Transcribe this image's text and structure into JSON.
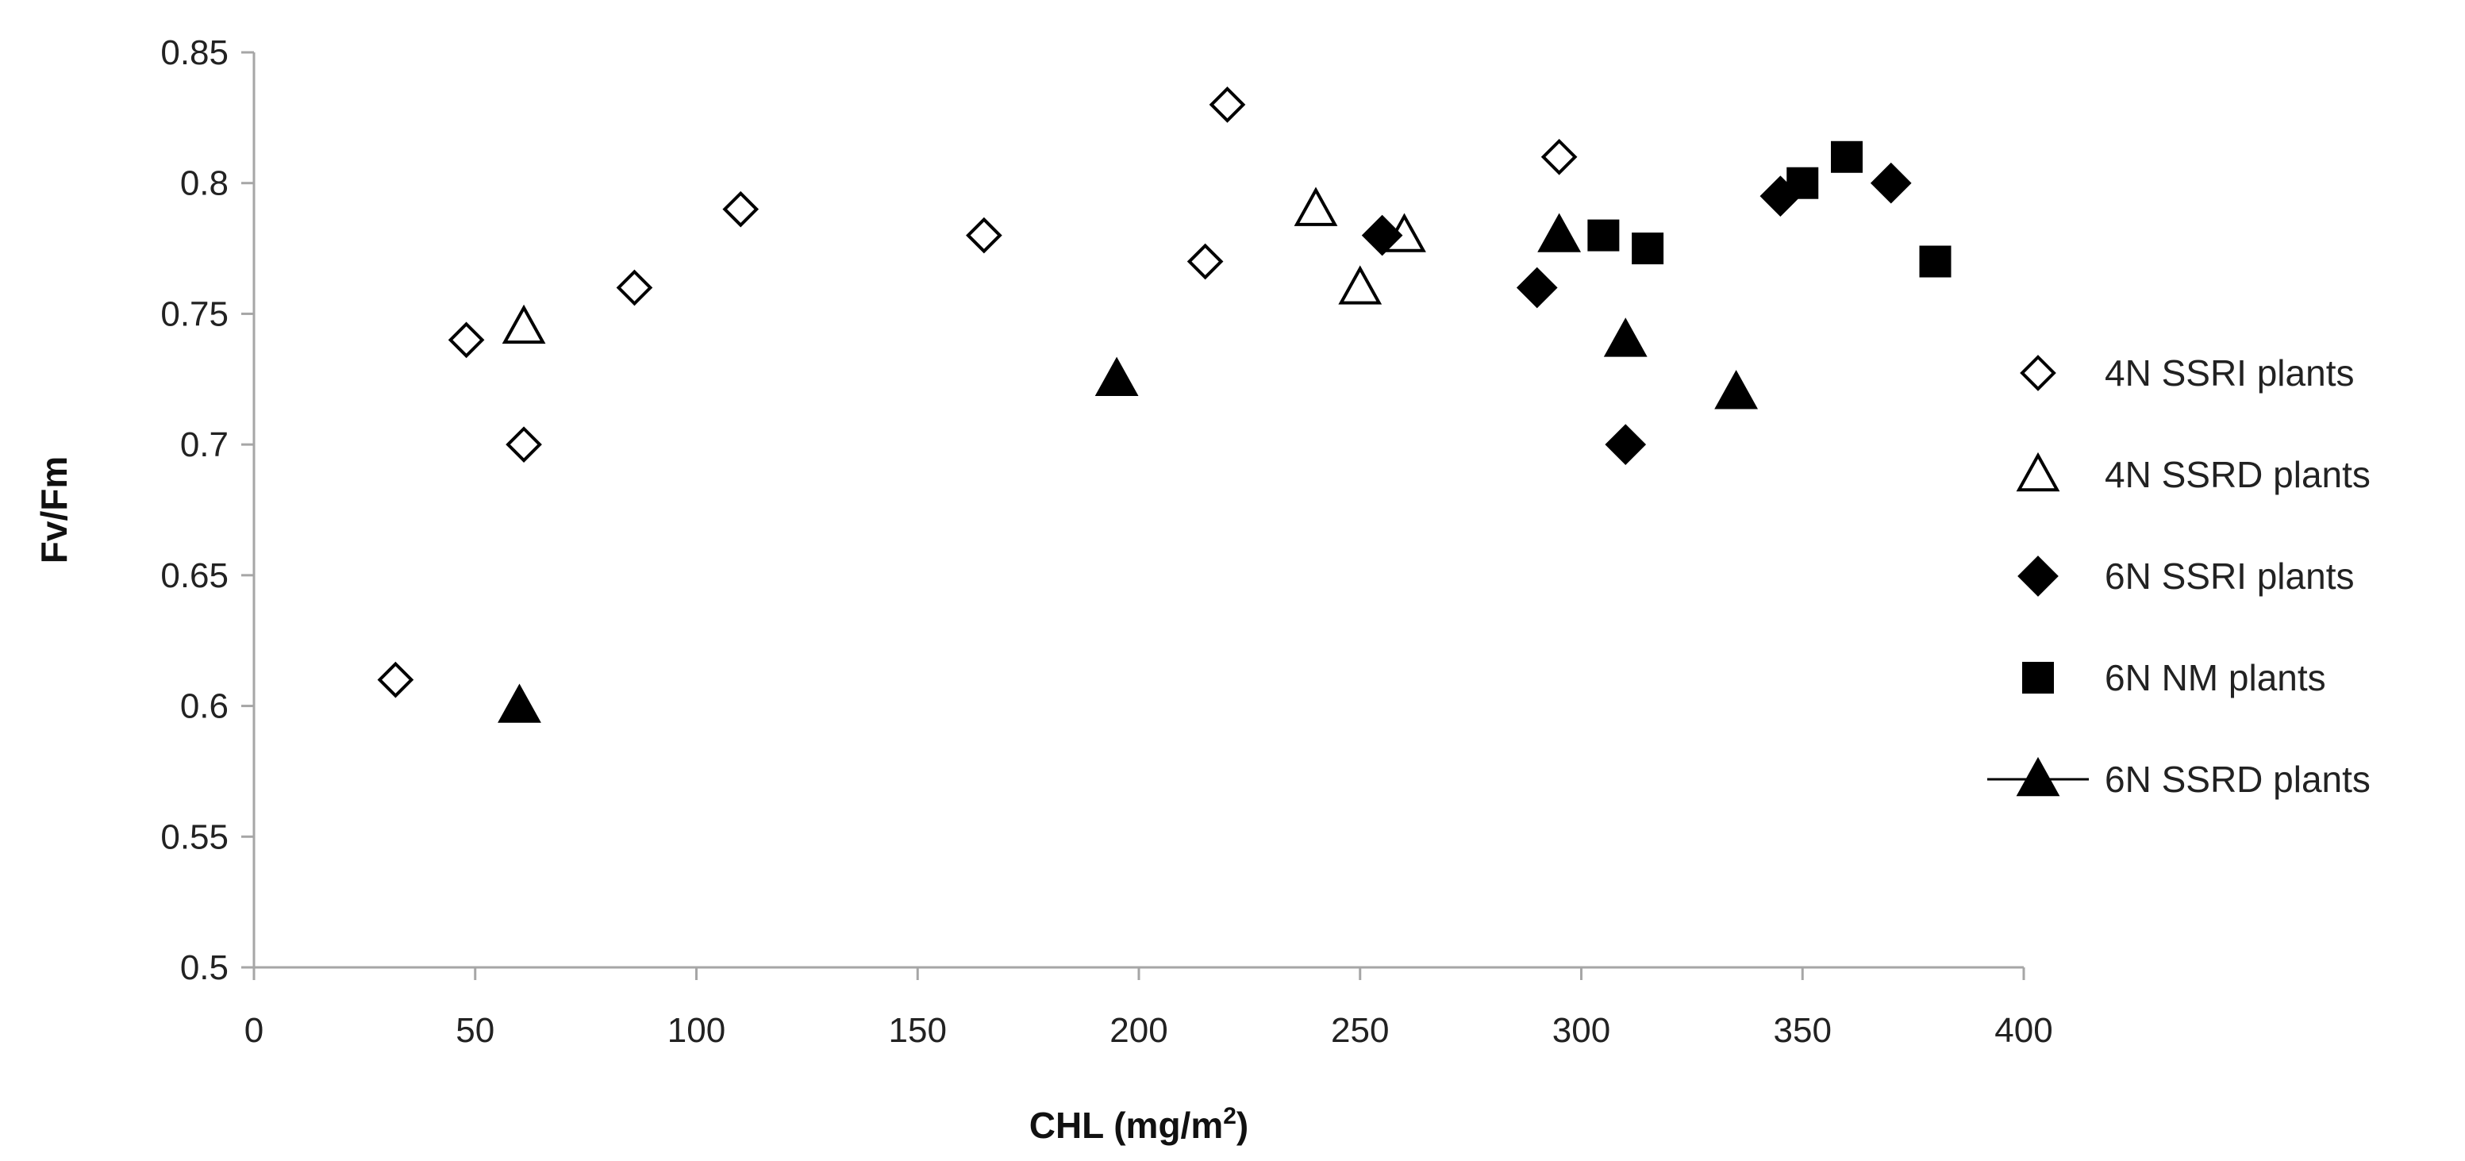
{
  "chart_data": {
    "type": "scatter",
    "title": "",
    "xlabel": "CHL (mg/m",
    "xlabel_superscript": "2",
    "xlabel_suffix": ")",
    "ylabel": "Fv/Fm",
    "xlim": [
      0,
      400
    ],
    "ylim": [
      0.5,
      0.85
    ],
    "x_ticks": [
      0,
      50,
      100,
      150,
      200,
      250,
      300,
      350,
      400
    ],
    "x_tick_labels": [
      "0",
      "50",
      "100",
      "150",
      "200",
      "250",
      "300",
      "350",
      "400"
    ],
    "y_ticks": [
      0.5,
      0.55,
      0.6,
      0.65,
      0.7,
      0.75,
      0.8,
      0.85
    ],
    "y_tick_labels": [
      "0.5",
      "0.55",
      "0.6",
      "0.65",
      "0.7",
      "0.75",
      "0.8",
      "0.85"
    ],
    "grid": false,
    "legend_position": "right",
    "series": [
      {
        "name": "4N SSRI plants",
        "marker": "diamond-open",
        "color": "#000000",
        "points": [
          [
            32,
            0.61
          ],
          [
            48,
            0.74
          ],
          [
            61,
            0.7
          ],
          [
            86,
            0.76
          ],
          [
            110,
            0.79
          ],
          [
            165,
            0.78
          ],
          [
            215,
            0.77
          ],
          [
            220,
            0.83
          ],
          [
            295,
            0.81
          ]
        ]
      },
      {
        "name": "4N SSRD plants",
        "marker": "triangle-open",
        "color": "#000000",
        "points": [
          [
            61,
            0.745
          ],
          [
            240,
            0.79
          ],
          [
            250,
            0.76
          ],
          [
            260,
            0.78
          ]
        ]
      },
      {
        "name": "6N SSRI plants",
        "marker": "diamond-filled",
        "color": "#000000",
        "points": [
          [
            255,
            0.78
          ],
          [
            290,
            0.76
          ],
          [
            310,
            0.7
          ],
          [
            345,
            0.795
          ],
          [
            370,
            0.8
          ]
        ]
      },
      {
        "name": "6N NM plants",
        "marker": "square-filled",
        "color": "#000000",
        "points": [
          [
            305,
            0.78
          ],
          [
            315,
            0.775
          ],
          [
            350,
            0.8
          ],
          [
            360,
            0.81
          ],
          [
            380,
            0.77
          ]
        ]
      },
      {
        "name": "6N SSRD plants",
        "marker": "triangle-filled",
        "color": "#000000",
        "legend_line": true,
        "points": [
          [
            60,
            0.6
          ],
          [
            195,
            0.725
          ],
          [
            295,
            0.78
          ],
          [
            310,
            0.74
          ],
          [
            335,
            0.72
          ]
        ]
      }
    ]
  }
}
